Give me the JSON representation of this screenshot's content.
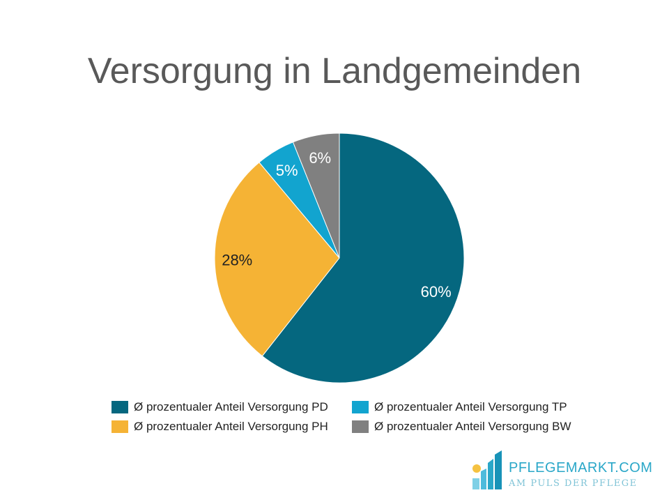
{
  "chart_data": {
    "type": "pie",
    "title": "Versorgung in Landgemeinden",
    "slices": [
      {
        "label": "Ø prozentualer Anteil Versorgung PD",
        "value": 60,
        "display": "60%",
        "color": "#05677f",
        "label_color": "#ffffff"
      },
      {
        "label": "Ø prozentualer Anteil Versorgung PH",
        "value": 28,
        "display": "28%",
        "color": "#f5b335",
        "label_color": "#222222"
      },
      {
        "label": "Ø prozentualer Anteil Versorgung TP",
        "value": 5,
        "display": "5%",
        "color": "#12a4cf",
        "label_color": "#ffffff"
      },
      {
        "label": "Ø prozentualer Anteil Versorgung BW",
        "value": 6,
        "display": "6%",
        "color": "#808080",
        "label_color": "#ffffff"
      }
    ],
    "legend_order": [
      0,
      2,
      1,
      3
    ],
    "legend_placement": "bottom"
  },
  "logo": {
    "name": "PFLEGEMARKT.COM",
    "tagline": "AM PULS DER PFLEGE"
  }
}
